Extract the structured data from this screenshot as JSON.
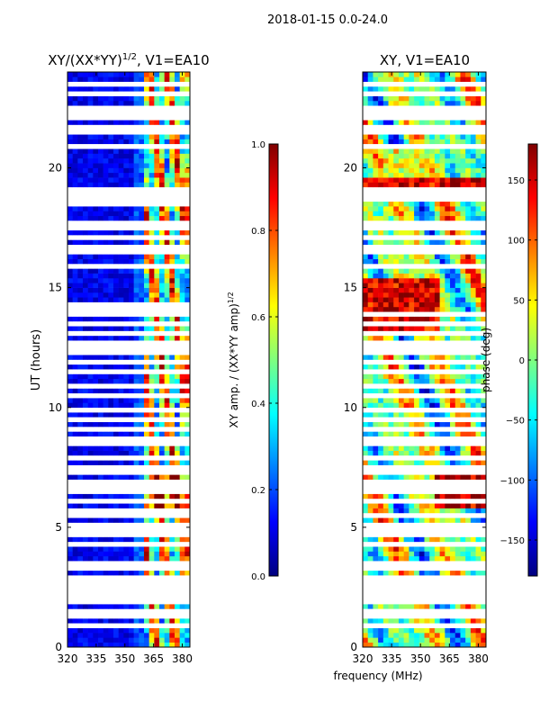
{
  "figure": {
    "title": "2018-01-15 0.0-24.0"
  },
  "colors": {
    "jet": [
      "#00007f",
      "#0000ff",
      "#007fff",
      "#00ffff",
      "#7fff7f",
      "#ffff00",
      "#ff7f00",
      "#ff0000",
      "#7f0000"
    ],
    "axes_edge": "#000000",
    "gap": "#ffffff"
  },
  "chart_data": [
    {
      "type": "heatmap",
      "title": "XY/(XX*YY)",
      "title_superscript": "1/2",
      "title_suffix": ", V1=EA10",
      "xlabel": "",
      "ylabel": "UT (hours)",
      "xlim": [
        320,
        384
      ],
      "ylim": [
        0,
        24
      ],
      "xticks": [
        320,
        335,
        350,
        365,
        380
      ],
      "xtick_labels": [
        "320",
        "335",
        "350",
        "365",
        "380"
      ],
      "yticks": [
        0,
        5,
        10,
        15,
        20
      ],
      "ytick_labels": [
        "0",
        "5",
        "10",
        "15",
        "20"
      ],
      "gap_rows_ut": [
        0.95,
        1.3,
        1.5,
        2.3,
        2.6,
        2.95,
        3.3,
        3.55,
        4.25,
        4.65,
        4.85,
        5.0,
        5.1,
        5.5,
        5.6,
        6.05,
        6.45,
        6.8,
        7.3,
        7.55,
        7.95,
        8.45,
        8.65,
        9.1,
        9.55,
        9.95,
        10.45,
        10.95,
        11.5,
        11.85,
        12.35,
        12.6,
        13.05,
        13.45,
        13.85,
        14.05,
        14.3,
        15.85,
        16.45,
        16.65,
        17.05,
        17.55,
        17.75,
        18.45,
        18.75,
        19.05,
        20.95,
        21.45,
        21.75,
        22.05,
        22.25,
        22.55,
        23.05,
        23.55
      ],
      "gap_bands_ut": [
        [
          1.75,
          2.1
        ],
        [
          18.8,
          19.0
        ],
        [
          21.95,
          22.1
        ]
      ],
      "colorbar": {
        "label": "XY amp. / (XX*YY amp)",
        "label_superscript": "1/2",
        "min": 0.0,
        "max": 1.0,
        "ticks": [
          0.0,
          0.2,
          0.4,
          0.6,
          0.8,
          1.0
        ],
        "tick_labels": [
          "0.0",
          "0.2",
          "0.4",
          "0.6",
          "0.8",
          "1.0"
        ]
      }
    },
    {
      "type": "heatmap",
      "title": "XY, V1=EA10",
      "xlabel": "frequency (MHz)",
      "ylabel": "",
      "xlim": [
        320,
        384
      ],
      "ylim": [
        0,
        24
      ],
      "xticks": [
        320,
        335,
        350,
        365,
        380
      ],
      "xtick_labels": [
        "320",
        "335",
        "350",
        "365",
        "380"
      ],
      "yticks": [
        0,
        5,
        10,
        15,
        20
      ],
      "ytick_labels": [
        "0",
        "5",
        "10",
        "15",
        "20"
      ],
      "gap_rows_ut": [
        0.95,
        1.3,
        1.55,
        2.3,
        2.6,
        2.95,
        3.3,
        3.55,
        4.25,
        4.65,
        4.85,
        5.0,
        5.5,
        6.05,
        6.45,
        6.8,
        7.3,
        7.55,
        7.95,
        8.45,
        8.65,
        9.1,
        9.55,
        9.95,
        10.45,
        10.95,
        11.5,
        11.85,
        12.35,
        12.6,
        13.05,
        13.45,
        13.85,
        15.85,
        16.45,
        16.65,
        17.05,
        17.55,
        17.75,
        18.75,
        19.05,
        20.95,
        21.45,
        21.75,
        22.05,
        22.25,
        22.55,
        23.05,
        23.55
      ],
      "gap_bands_ut": [
        [
          1.75,
          2.1
        ],
        [
          18.8,
          19.0
        ],
        [
          21.95,
          22.1
        ]
      ],
      "colorbar": {
        "label": "phase (deg)",
        "min": -180,
        "max": 180,
        "ticks": [
          -150,
          -100,
          -50,
          0,
          50,
          100,
          150
        ],
        "tick_labels": [
          "−150",
          "−100",
          "−50",
          "0",
          "50",
          "100",
          "150"
        ]
      }
    }
  ]
}
